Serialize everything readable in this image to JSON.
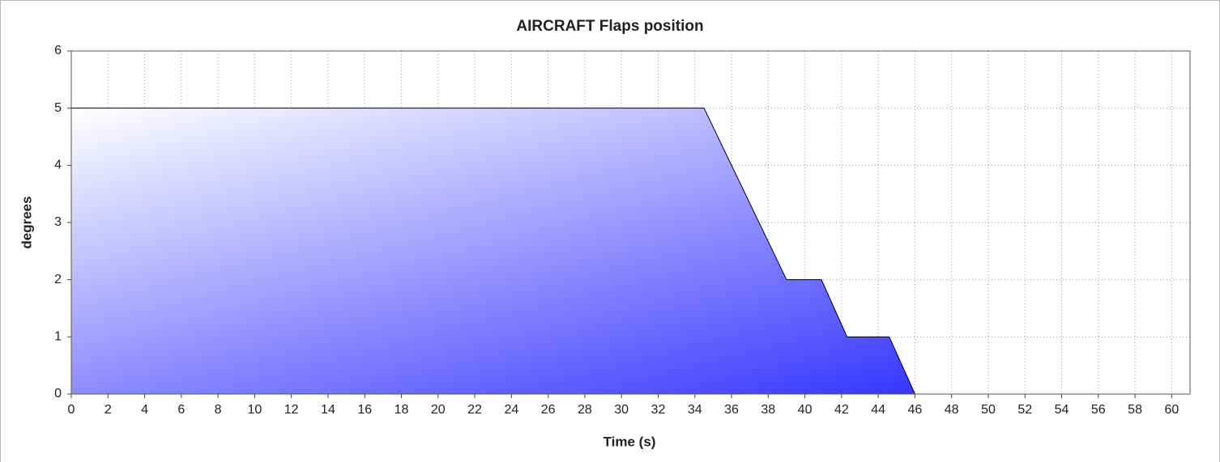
{
  "chart_data": {
    "type": "area",
    "title": "AIRCRAFT Flaps position",
    "x_label": "Time (s)",
    "y_label": "degrees",
    "x": [
      0,
      34.5,
      39,
      40.9,
      42.3,
      44.6,
      46,
      61
    ],
    "series": [
      {
        "color": "#1a1aff",
        "values": [
          5,
          5,
          2,
          2,
          1,
          1,
          0,
          0
        ]
      }
    ],
    "xlim": [
      0,
      61
    ],
    "xticks": [
      0,
      2,
      4,
      6,
      8,
      10,
      12,
      14,
      16,
      18,
      20,
      22,
      24,
      26,
      28,
      30,
      32,
      34,
      36,
      38,
      40,
      42,
      44,
      46,
      48,
      50,
      52,
      54,
      56,
      58,
      60
    ],
    "ylim": [
      0,
      6
    ],
    "yticks": [
      0,
      1,
      2,
      3,
      4,
      5,
      6
    ],
    "grid": true
  }
}
